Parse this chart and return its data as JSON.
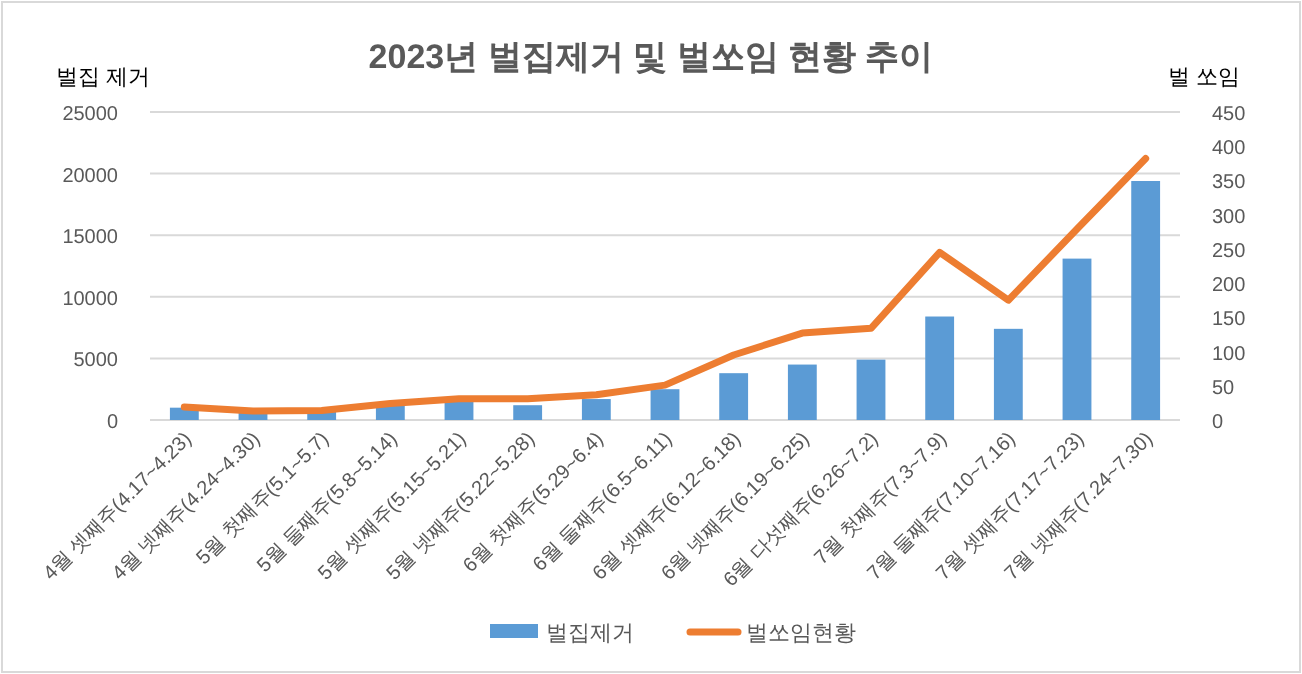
{
  "chart_data": {
    "type": "bar",
    "title": "2023년 벌집제거 및 벌쏘임 현황 추이",
    "ylabel": "벌집 제거",
    "y2label": "벌 쏘임",
    "categories": [
      "4월 셋째주(4.17~4.23)",
      "4월 넷째주(4.24~4.30)",
      "5월 첫째주(5.1~5.7)",
      "5월 둘째주(5.8~5.14)",
      "5월 셋째주(5.15~5.21)",
      "5월 넷째주(5.22~5.28)",
      "6월 첫째주(5.29~6.4)",
      "6월 둘째주(6.5~6.11)",
      "6월 셋째주(6.12~6.18)",
      "6월 넷째주(6.19~6.25)",
      "6월 다섯째주(6.26~7.2)",
      "7월 첫째주(7.3~7.9)",
      "7월 둘째주(7.10~7.16)",
      "7월 셋째주(7.17~7.23)",
      "7월 넷째주(7.24~7.30)"
    ],
    "series": [
      {
        "name": "벌집제거",
        "color": "#5b9bd5",
        "values": [
          1000,
          700,
          700,
          1200,
          1600,
          1200,
          1700,
          2500,
          3800,
          4500,
          4900,
          8400,
          7400,
          13100,
          19400
        ]
      },
      {
        "name": "벌쏘임현황",
        "type": "line",
        "axis": "y2",
        "color": "#ed7d31",
        "values": [
          19,
          13,
          14,
          24,
          31,
          31,
          37,
          51,
          95,
          127,
          134,
          245,
          175,
          279,
          382
        ]
      }
    ],
    "ylim": [
      0,
      25000
    ],
    "yticks": [
      0,
      5000,
      10000,
      15000,
      20000,
      25000
    ],
    "y2lim": [
      0,
      450
    ],
    "y2ticks": [
      0,
      50,
      100,
      150,
      200,
      250,
      300,
      350,
      400,
      450
    ],
    "grid": "y",
    "legend": "bottom"
  }
}
